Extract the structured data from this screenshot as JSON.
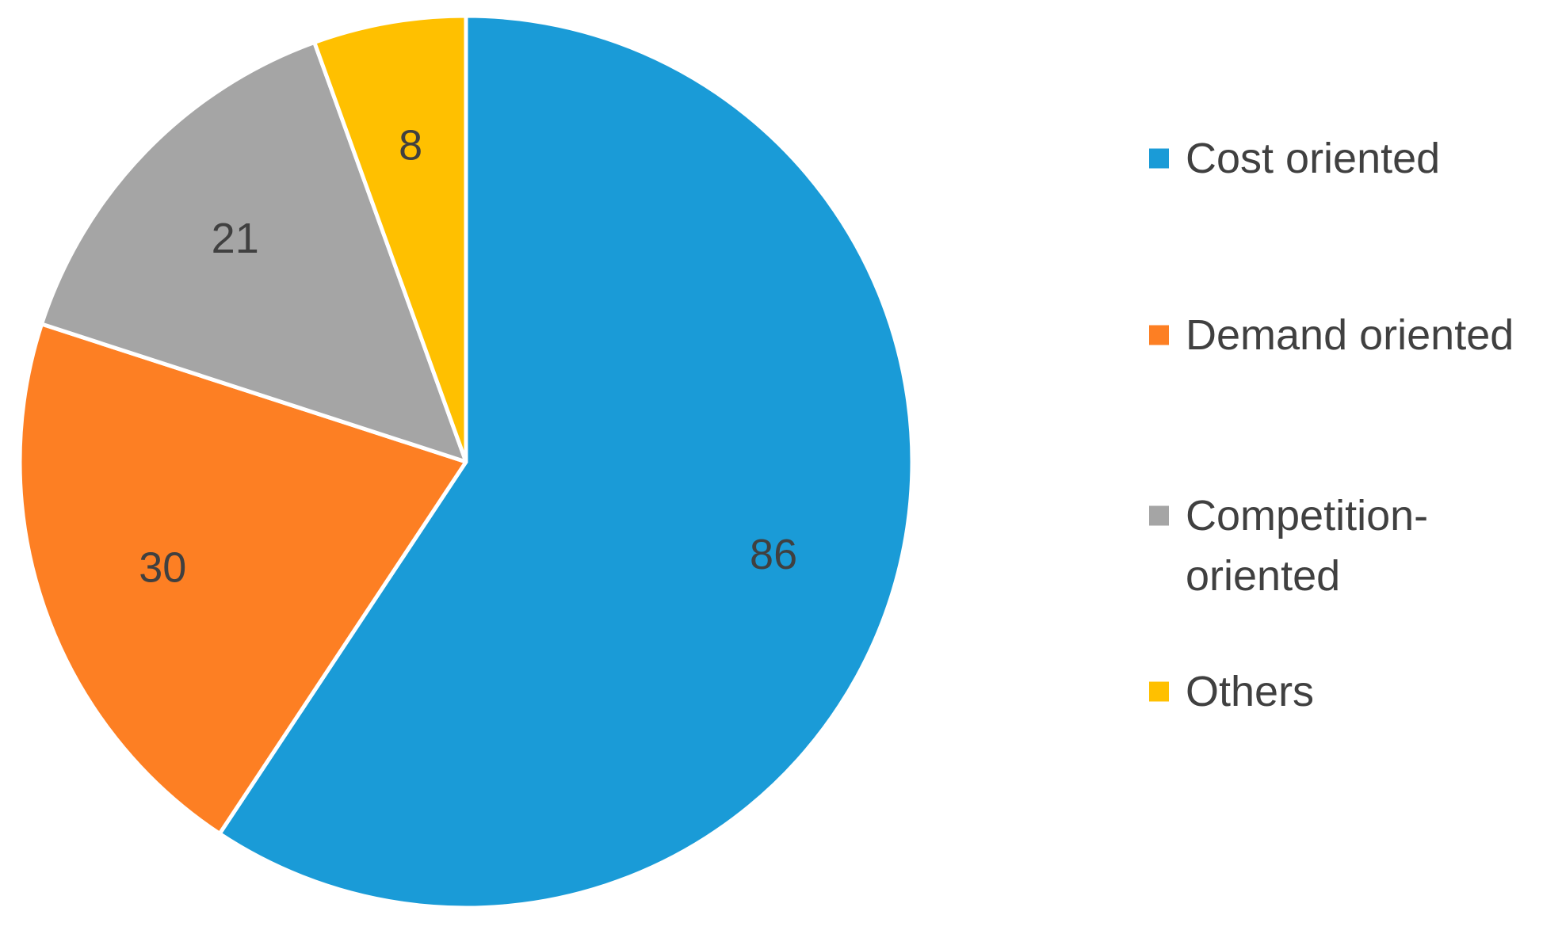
{
  "chart_data": {
    "type": "pie",
    "title": "",
    "start": "top",
    "direction": "clockwise",
    "slices": [
      {
        "label": "Cost oriented",
        "value": 86,
        "color": "#1a9bd7"
      },
      {
        "label": "Demand oriented",
        "value": 30,
        "color": "#fd7f23"
      },
      {
        "label": "Competition-oriented",
        "legend_lines": [
          "Competition-",
          "oriented"
        ],
        "value": 21,
        "color": "#a5a5a5"
      },
      {
        "label": "Others",
        "value": 8,
        "color": "#ffc000"
      }
    ],
    "data_labels": [
      "86",
      "30",
      "21",
      "8"
    ],
    "legend_position": "right",
    "slice_border_color": "#ffffff"
  }
}
